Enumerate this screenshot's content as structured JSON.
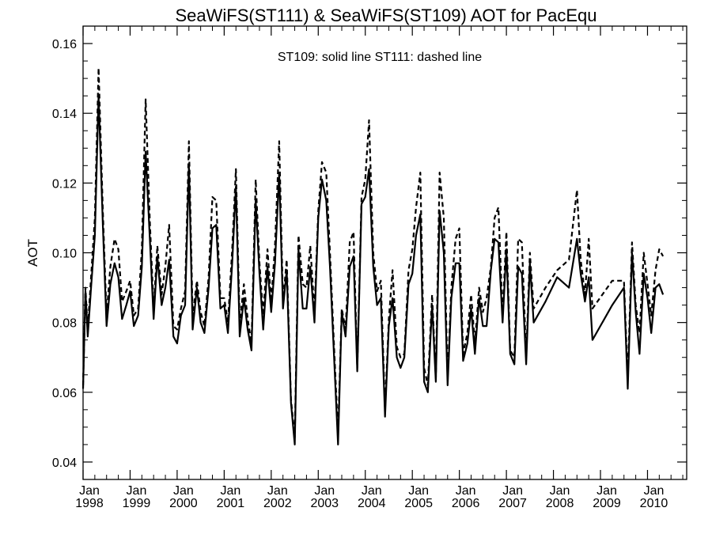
{
  "chart_data": {
    "type": "line",
    "title": "SeaWiFS(ST111) & SeaWiFS(ST109)  AOT for PacEqu",
    "ylabel": "AOT",
    "xlabel": "",
    "annotation": "ST109: solid line   ST111: dashed line",
    "xlim": [
      1998.0,
      2010.833
    ],
    "ylim": [
      0.035,
      0.165
    ],
    "yticks": [
      0.04,
      0.06,
      0.08,
      0.1,
      0.12,
      0.14,
      0.16
    ],
    "ytick_labels": [
      "0.04",
      "0.06",
      "0.08",
      "0.10",
      "0.12",
      "0.14",
      "0.16"
    ],
    "xticks": [
      {
        "x": 1998,
        "month": "Jan",
        "year": "1998"
      },
      {
        "x": 1999,
        "month": "Jan",
        "year": "1999"
      },
      {
        "x": 2000,
        "month": "Jan",
        "year": "2000"
      },
      {
        "x": 2001,
        "month": "Jan",
        "year": "2001"
      },
      {
        "x": 2002,
        "month": "Jan",
        "year": "2002"
      },
      {
        "x": 2003,
        "month": "Jan",
        "year": "2003"
      },
      {
        "x": 2004,
        "month": "Jan",
        "year": "2004"
      },
      {
        "x": 2005,
        "month": "Jan",
        "year": "2005"
      },
      {
        "x": 2006,
        "month": "Jan",
        "year": "2006"
      },
      {
        "x": 2007,
        "month": "Jan",
        "year": "2007"
      },
      {
        "x": 2008,
        "month": "Jan",
        "year": "2008"
      },
      {
        "x": 2009,
        "month": "Jan",
        "year": "2009"
      },
      {
        "x": 2010,
        "month": "Jan",
        "year": "2010"
      }
    ],
    "grid": false,
    "series": [
      {
        "name": "ST109",
        "style": "solid",
        "color": "#000000",
        "points": [
          [
            1998.0,
            0.061
          ],
          [
            1998.05,
            0.089
          ],
          [
            1998.1,
            0.076
          ],
          [
            1998.17,
            0.09
          ],
          [
            1998.25,
            0.105
          ],
          [
            1998.33,
            0.145
          ],
          [
            1998.42,
            0.108
          ],
          [
            1998.5,
            0.079
          ],
          [
            1998.58,
            0.091
          ],
          [
            1998.67,
            0.097
          ],
          [
            1998.75,
            0.093
          ],
          [
            1998.83,
            0.081
          ],
          [
            1998.92,
            0.085
          ],
          [
            1999.0,
            0.089
          ],
          [
            1999.08,
            0.079
          ],
          [
            1999.17,
            0.082
          ],
          [
            1999.25,
            0.096
          ],
          [
            1999.33,
            0.129
          ],
          [
            1999.42,
            0.104
          ],
          [
            1999.5,
            0.081
          ],
          [
            1999.58,
            0.099
          ],
          [
            1999.67,
            0.085
          ],
          [
            1999.75,
            0.09
          ],
          [
            1999.83,
            0.098
          ],
          [
            1999.92,
            0.076
          ],
          [
            2000.0,
            0.074
          ],
          [
            2000.08,
            0.082
          ],
          [
            2000.17,
            0.085
          ],
          [
            2000.25,
            0.125
          ],
          [
            2000.33,
            0.078
          ],
          [
            2000.42,
            0.09
          ],
          [
            2000.5,
            0.08
          ],
          [
            2000.58,
            0.077
          ],
          [
            2000.67,
            0.09
          ],
          [
            2000.75,
            0.107
          ],
          [
            2000.83,
            0.108
          ],
          [
            2000.92,
            0.084
          ],
          [
            2001.0,
            0.085
          ],
          [
            2001.08,
            0.077
          ],
          [
            2001.17,
            0.097
          ],
          [
            2001.25,
            0.119
          ],
          [
            2001.33,
            0.076
          ],
          [
            2001.42,
            0.087
          ],
          [
            2001.5,
            0.078
          ],
          [
            2001.58,
            0.072
          ],
          [
            2001.67,
            0.115
          ],
          [
            2001.75,
            0.094
          ],
          [
            2001.83,
            0.078
          ],
          [
            2001.92,
            0.096
          ],
          [
            2002.0,
            0.083
          ],
          [
            2002.08,
            0.097
          ],
          [
            2002.17,
            0.123
          ],
          [
            2002.25,
            0.084
          ],
          [
            2002.33,
            0.095
          ],
          [
            2002.42,
            0.057
          ],
          [
            2002.5,
            0.045
          ],
          [
            2002.58,
            0.101
          ],
          [
            2002.67,
            0.084
          ],
          [
            2002.75,
            0.084
          ],
          [
            2002.83,
            0.096
          ],
          [
            2002.92,
            0.08
          ],
          [
            2003.0,
            0.11
          ],
          [
            2003.08,
            0.121
          ],
          [
            2003.17,
            0.115
          ],
          [
            2003.25,
            0.096
          ],
          [
            2003.33,
            0.072
          ],
          [
            2003.42,
            0.045
          ],
          [
            2003.5,
            0.083
          ],
          [
            2003.58,
            0.076
          ],
          [
            2003.67,
            0.096
          ],
          [
            2003.75,
            0.099
          ],
          [
            2003.83,
            0.066
          ],
          [
            2003.92,
            0.114
          ],
          [
            2004.0,
            0.116
          ],
          [
            2004.08,
            0.124
          ],
          [
            2004.17,
            0.096
          ],
          [
            2004.25,
            0.085
          ],
          [
            2004.33,
            0.087
          ],
          [
            2004.42,
            0.053
          ],
          [
            2004.5,
            0.079
          ],
          [
            2004.58,
            0.087
          ],
          [
            2004.67,
            0.07
          ],
          [
            2004.75,
            0.067
          ],
          [
            2004.83,
            0.07
          ],
          [
            2004.92,
            0.091
          ],
          [
            2005.0,
            0.094
          ],
          [
            2005.08,
            0.105
          ],
          [
            2005.17,
            0.111
          ],
          [
            2005.25,
            0.063
          ],
          [
            2005.33,
            0.06
          ],
          [
            2005.42,
            0.085
          ],
          [
            2005.5,
            0.063
          ],
          [
            2005.58,
            0.112
          ],
          [
            2005.67,
            0.1
          ],
          [
            2005.75,
            0.062
          ],
          [
            2005.83,
            0.087
          ],
          [
            2005.92,
            0.097
          ],
          [
            2006.0,
            0.097
          ],
          [
            2006.08,
            0.069
          ],
          [
            2006.17,
            0.074
          ],
          [
            2006.25,
            0.084
          ],
          [
            2006.33,
            0.071
          ],
          [
            2006.42,
            0.087
          ],
          [
            2006.5,
            0.079
          ],
          [
            2006.58,
            0.079
          ],
          [
            2006.67,
            0.095
          ],
          [
            2006.75,
            0.104
          ],
          [
            2006.83,
            0.103
          ],
          [
            2006.92,
            0.08
          ],
          [
            2007.0,
            0.101
          ],
          [
            2007.08,
            0.071
          ],
          [
            2007.17,
            0.068
          ],
          [
            2007.25,
            0.096
          ],
          [
            2007.33,
            0.094
          ],
          [
            2007.42,
            0.068
          ],
          [
            2007.5,
            0.097
          ],
          [
            2007.58,
            0.08
          ],
          [
            2007.83,
            0.086
          ],
          [
            2008.08,
            0.093
          ],
          [
            2008.33,
            0.09
          ],
          [
            2008.5,
            0.104
          ],
          [
            2008.58,
            0.094
          ],
          [
            2008.67,
            0.086
          ],
          [
            2008.75,
            0.093
          ],
          [
            2008.83,
            0.075
          ],
          [
            2009.25,
            0.085
          ],
          [
            2009.5,
            0.09
          ],
          [
            2009.58,
            0.061
          ],
          [
            2009.67,
            0.1
          ],
          [
            2009.75,
            0.083
          ],
          [
            2009.83,
            0.071
          ],
          [
            2009.92,
            0.094
          ],
          [
            2010.0,
            0.087
          ],
          [
            2010.08,
            0.077
          ],
          [
            2010.17,
            0.09
          ],
          [
            2010.25,
            0.091
          ],
          [
            2010.33,
            0.088
          ]
        ]
      },
      {
        "name": "ST111",
        "style": "dashed",
        "color": "#000000",
        "points": [
          [
            1998.0,
            0.062
          ],
          [
            1998.05,
            0.09
          ],
          [
            1998.1,
            0.078
          ],
          [
            1998.17,
            0.093
          ],
          [
            1998.25,
            0.11
          ],
          [
            1998.33,
            0.153
          ],
          [
            1998.42,
            0.112
          ],
          [
            1998.5,
            0.082
          ],
          [
            1998.58,
            0.096
          ],
          [
            1998.67,
            0.104
          ],
          [
            1998.75,
            0.101
          ],
          [
            1998.83,
            0.086
          ],
          [
            1998.92,
            0.089
          ],
          [
            1999.0,
            0.092
          ],
          [
            1999.08,
            0.082
          ],
          [
            1999.17,
            0.084
          ],
          [
            1999.25,
            0.101
          ],
          [
            1999.33,
            0.144
          ],
          [
            1999.42,
            0.109
          ],
          [
            1999.5,
            0.084
          ],
          [
            1999.58,
            0.102
          ],
          [
            1999.67,
            0.088
          ],
          [
            1999.75,
            0.096
          ],
          [
            1999.83,
            0.108
          ],
          [
            1999.92,
            0.079
          ],
          [
            2000.0,
            0.078
          ],
          [
            2000.08,
            0.084
          ],
          [
            2000.17,
            0.089
          ],
          [
            2000.25,
            0.132
          ],
          [
            2000.33,
            0.082
          ],
          [
            2000.42,
            0.092
          ],
          [
            2000.5,
            0.083
          ],
          [
            2000.58,
            0.079
          ],
          [
            2000.67,
            0.093
          ],
          [
            2000.75,
            0.116
          ],
          [
            2000.83,
            0.115
          ],
          [
            2000.92,
            0.087
          ],
          [
            2001.0,
            0.087
          ],
          [
            2001.08,
            0.08
          ],
          [
            2001.17,
            0.101
          ],
          [
            2001.25,
            0.124
          ],
          [
            2001.33,
            0.08
          ],
          [
            2001.42,
            0.091
          ],
          [
            2001.5,
            0.081
          ],
          [
            2001.58,
            0.074
          ],
          [
            2001.67,
            0.121
          ],
          [
            2001.75,
            0.097
          ],
          [
            2001.83,
            0.082
          ],
          [
            2001.92,
            0.101
          ],
          [
            2002.0,
            0.086
          ],
          [
            2002.08,
            0.102
          ],
          [
            2002.17,
            0.132
          ],
          [
            2002.25,
            0.086
          ],
          [
            2002.33,
            0.098
          ],
          [
            2002.42,
            0.058
          ],
          [
            2002.5,
            0.047
          ],
          [
            2002.58,
            0.105
          ],
          [
            2002.67,
            0.091
          ],
          [
            2002.75,
            0.09
          ],
          [
            2002.83,
            0.102
          ],
          [
            2002.92,
            0.083
          ],
          [
            2003.0,
            0.112
          ],
          [
            2003.08,
            0.126
          ],
          [
            2003.17,
            0.123
          ],
          [
            2003.25,
            0.1
          ],
          [
            2003.33,
            0.075
          ],
          [
            2003.42,
            0.048
          ],
          [
            2003.5,
            0.084
          ],
          [
            2003.58,
            0.078
          ],
          [
            2003.67,
            0.103
          ],
          [
            2003.75,
            0.106
          ],
          [
            2003.83,
            0.067
          ],
          [
            2003.92,
            0.116
          ],
          [
            2004.0,
            0.121
          ],
          [
            2004.08,
            0.138
          ],
          [
            2004.17,
            0.1
          ],
          [
            2004.25,
            0.089
          ],
          [
            2004.33,
            0.092
          ],
          [
            2004.42,
            0.055
          ],
          [
            2004.5,
            0.081
          ],
          [
            2004.58,
            0.095
          ],
          [
            2004.67,
            0.073
          ],
          [
            2004.75,
            0.07
          ],
          [
            2004.83,
            0.071
          ],
          [
            2004.92,
            0.095
          ],
          [
            2005.0,
            0.101
          ],
          [
            2005.08,
            0.113
          ],
          [
            2005.17,
            0.123
          ],
          [
            2005.25,
            0.067
          ],
          [
            2005.33,
            0.062
          ],
          [
            2005.42,
            0.088
          ],
          [
            2005.5,
            0.064
          ],
          [
            2005.58,
            0.123
          ],
          [
            2005.67,
            0.11
          ],
          [
            2005.75,
            0.064
          ],
          [
            2005.83,
            0.09
          ],
          [
            2005.92,
            0.104
          ],
          [
            2006.0,
            0.107
          ],
          [
            2006.08,
            0.071
          ],
          [
            2006.17,
            0.077
          ],
          [
            2006.25,
            0.088
          ],
          [
            2006.33,
            0.074
          ],
          [
            2006.42,
            0.09
          ],
          [
            2006.5,
            0.083
          ],
          [
            2006.58,
            0.087
          ],
          [
            2006.67,
            0.096
          ],
          [
            2006.75,
            0.11
          ],
          [
            2006.83,
            0.113
          ],
          [
            2006.92,
            0.082
          ],
          [
            2007.0,
            0.106
          ],
          [
            2007.08,
            0.072
          ],
          [
            2007.17,
            0.07
          ],
          [
            2007.25,
            0.104
          ],
          [
            2007.33,
            0.103
          ],
          [
            2007.42,
            0.07
          ],
          [
            2007.5,
            0.1
          ],
          [
            2007.58,
            0.084
          ],
          [
            2007.83,
            0.09
          ],
          [
            2008.08,
            0.095
          ],
          [
            2008.33,
            0.098
          ],
          [
            2008.5,
            0.118
          ],
          [
            2008.58,
            0.098
          ],
          [
            2008.67,
            0.088
          ],
          [
            2008.75,
            0.104
          ],
          [
            2008.83,
            0.084
          ],
          [
            2009.25,
            0.092
          ],
          [
            2009.5,
            0.092
          ],
          [
            2009.58,
            0.064
          ],
          [
            2009.67,
            0.103
          ],
          [
            2009.75,
            0.085
          ],
          [
            2009.83,
            0.077
          ],
          [
            2009.92,
            0.1
          ],
          [
            2010.0,
            0.091
          ],
          [
            2010.08,
            0.082
          ],
          [
            2010.17,
            0.095
          ],
          [
            2010.25,
            0.101
          ],
          [
            2010.33,
            0.099
          ]
        ]
      }
    ]
  }
}
